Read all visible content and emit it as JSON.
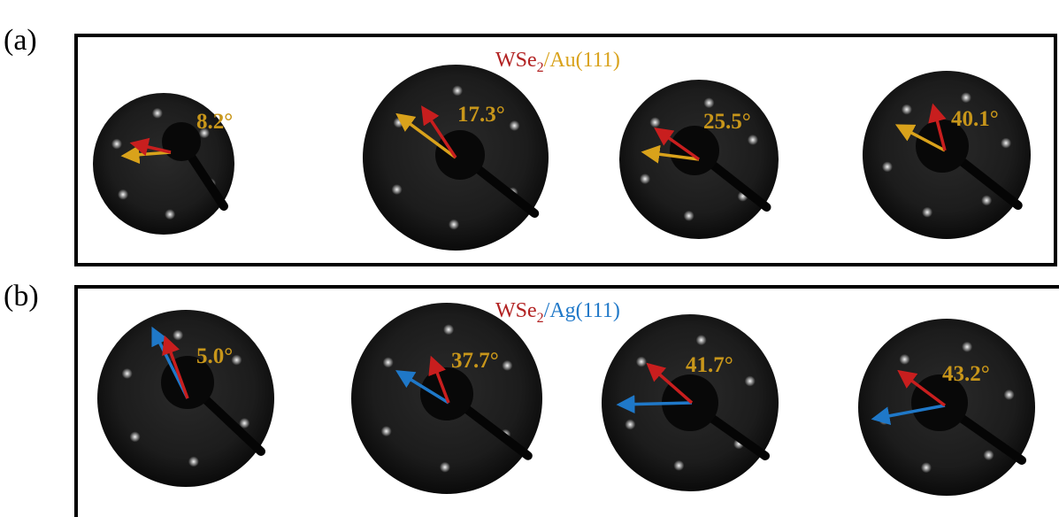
{
  "panels": [
    {
      "label": "(a)",
      "title": {
        "material": "WSe",
        "subscript": "2",
        "substrate": "/Au(111)"
      },
      "angles": [
        "8.2°",
        "17.3°",
        "25.5°",
        "40.1°"
      ]
    },
    {
      "label": "(b)",
      "title": {
        "material": "WSe",
        "subscript": "2",
        "substrate": "/Ag(111)"
      },
      "angles": [
        "5.0°",
        "37.7°",
        "41.7°",
        "43.2°"
      ]
    }
  ]
}
